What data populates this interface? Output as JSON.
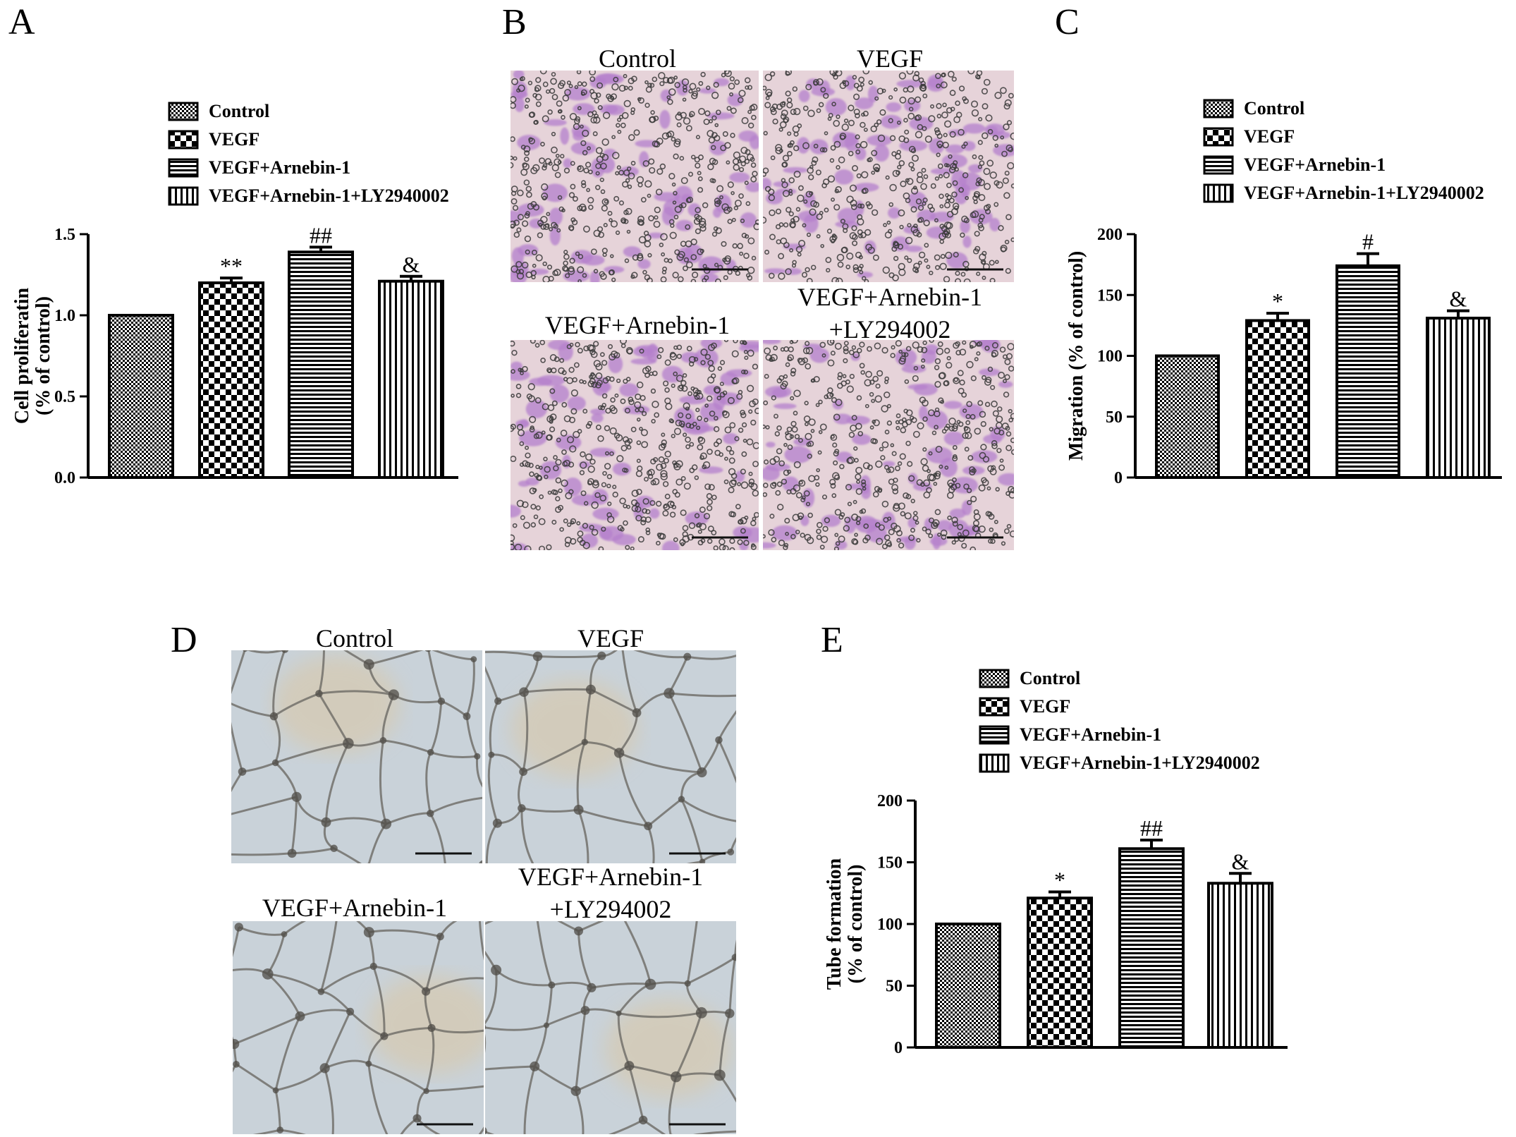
{
  "panels": {
    "A": "A",
    "B": "B",
    "C": "C",
    "D": "D",
    "E": "E"
  },
  "legend_items": [
    {
      "label": "Control",
      "pattern": "checker-small"
    },
    {
      "label": "VEGF",
      "pattern": "checker-large"
    },
    {
      "label": "VEGF+Arnebin-1",
      "pattern": "hstripes"
    },
    {
      "label": "VEGF+Arnebin-1+LY2940002",
      "pattern": "vstripes"
    }
  ],
  "micrographs_B": {
    "labels": [
      "Control",
      "VEGF",
      "VEGF+Arnebin-1",
      "VEGF+Arnebin-1",
      "+LY294002"
    ],
    "stain_colors": {
      "background": "#e6d3d9",
      "cells": "#b47fcc",
      "pores": "#3a3a3a"
    }
  },
  "micrographs_D": {
    "labels": [
      "Control",
      "VEGF",
      "VEGF+Arnebin-1",
      "VEGF+Arnebin-1",
      "+LY294002"
    ],
    "colors": {
      "background": "#c9d2d9",
      "tubes": "#6d6b66",
      "tint": "#d9c8a8"
    }
  },
  "chart_data": [
    {
      "panel": "A",
      "type": "bar",
      "categories": [
        "Control",
        "VEGF",
        "VEGF+Arnebin-1",
        "VEGF+Arnebin-1+LY2940002"
      ],
      "values": [
        1.0,
        1.2,
        1.39,
        1.21
      ],
      "errors": [
        0.0,
        0.03,
        0.03,
        0.03
      ],
      "annotations": [
        "",
        "**",
        "##",
        "&"
      ],
      "ylabel_lines": [
        "Cell proliferatin",
        "(% of control)"
      ],
      "ylim": [
        0,
        1.5
      ],
      "yticks": [
        "0.0",
        "0.5",
        "1.0",
        "1.5"
      ],
      "ytick_values": [
        0,
        0.5,
        1.0,
        1.5
      ]
    },
    {
      "panel": "C",
      "type": "bar",
      "categories": [
        "Control",
        "VEGF",
        "VEGF+Arnebin-1",
        "VEGF+Arnebin-1+LY2940002"
      ],
      "values": [
        100,
        129,
        174,
        131
      ],
      "errors": [
        0,
        6,
        10,
        6
      ],
      "annotations": [
        "",
        "*",
        "#",
        "&"
      ],
      "ylabel_lines": [
        "Migration (% of control)"
      ],
      "ylim": [
        0,
        200
      ],
      "yticks": [
        "0",
        "50",
        "100",
        "150",
        "200"
      ],
      "ytick_values": [
        0,
        50,
        100,
        150,
        200
      ]
    },
    {
      "panel": "E",
      "type": "bar",
      "categories": [
        "Control",
        "VEGF",
        "VEGF+Arnebin-1",
        "VEGF+Arnebin-1+LY2940002"
      ],
      "values": [
        100,
        121,
        161,
        133
      ],
      "errors": [
        0,
        5,
        7,
        8
      ],
      "annotations": [
        "",
        "*",
        "##",
        "&"
      ],
      "ylabel_lines": [
        "Tube formation",
        "(% of control)"
      ],
      "ylim": [
        0,
        200
      ],
      "yticks": [
        "0",
        "50",
        "100",
        "150",
        "200"
      ],
      "ytick_values": [
        0,
        50,
        100,
        150,
        200
      ]
    }
  ]
}
